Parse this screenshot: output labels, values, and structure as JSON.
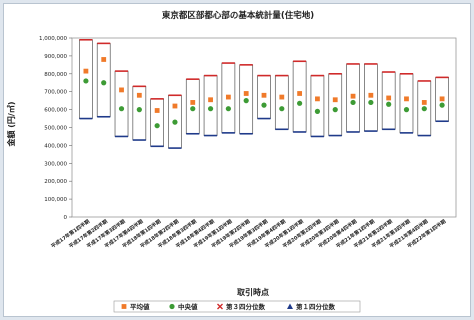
{
  "chart_data": {
    "type": "boxplot",
    "title": "東京都区部都心部の基本統計量(住宅地)",
    "xlabel": "取引時点",
    "ylabel": "金額 (円/㎡)",
    "ylim": [
      0,
      1000000
    ],
    "yticks": [
      0,
      100000,
      200000,
      300000,
      400000,
      500000,
      600000,
      700000,
      800000,
      900000,
      1000000
    ],
    "ytick_labels": [
      "0",
      "100,000",
      "200,000",
      "300,000",
      "400,000",
      "500,000",
      "600,000",
      "700,000",
      "800,000",
      "900,000",
      "1,000,000"
    ],
    "categories": [
      "平成17年第1四半期",
      "平成17年第2四半期",
      "平成17年第3四半期",
      "平成17年第4四半期",
      "平成18年第1四半期",
      "平成18年第2四半期",
      "平成18年第3四半期",
      "平成18年第4四半期",
      "平成19年第1四半期",
      "平成19年第2四半期",
      "平成19年第3四半期",
      "平成19年第4四半期",
      "平成20年第1四半期",
      "平成20年第2四半期",
      "平成20年第3四半期",
      "平成20年第4四半期",
      "平成21年第1四半期",
      "平成21年第2四半期",
      "平成21年第3四半期",
      "平成21年第4四半期",
      "平成22年第1四半期"
    ],
    "series": [
      {
        "name": "平均値",
        "marker": "square",
        "color": "#f07a2a",
        "values": [
          815000,
          880000,
          710000,
          680000,
          595000,
          620000,
          640000,
          655000,
          670000,
          690000,
          680000,
          670000,
          690000,
          660000,
          655000,
          675000,
          680000,
          665000,
          660000,
          640000,
          660000
        ]
      },
      {
        "name": "中央値",
        "marker": "circle",
        "color": "#3d9b35",
        "values": [
          760000,
          750000,
          605000,
          600000,
          510000,
          530000,
          605000,
          605000,
          605000,
          650000,
          625000,
          605000,
          635000,
          590000,
          600000,
          640000,
          640000,
          630000,
          600000,
          605000,
          625000
        ]
      },
      {
        "name": "第３四分位数",
        "marker": "x",
        "color": "#d02a2a",
        "values": [
          990000,
          970000,
          815000,
          730000,
          660000,
          680000,
          770000,
          790000,
          860000,
          850000,
          790000,
          790000,
          870000,
          790000,
          800000,
          855000,
          855000,
          810000,
          800000,
          760000,
          780000
        ]
      },
      {
        "name": "第１四分位数",
        "marker": "triangle",
        "color": "#1f3a8a",
        "values": [
          550000,
          560000,
          450000,
          430000,
          395000,
          385000,
          465000,
          455000,
          470000,
          465000,
          550000,
          490000,
          475000,
          450000,
          455000,
          475000,
          480000,
          490000,
          470000,
          455000,
          535000
        ]
      }
    ],
    "legend_position": "bottom",
    "grid": false
  }
}
